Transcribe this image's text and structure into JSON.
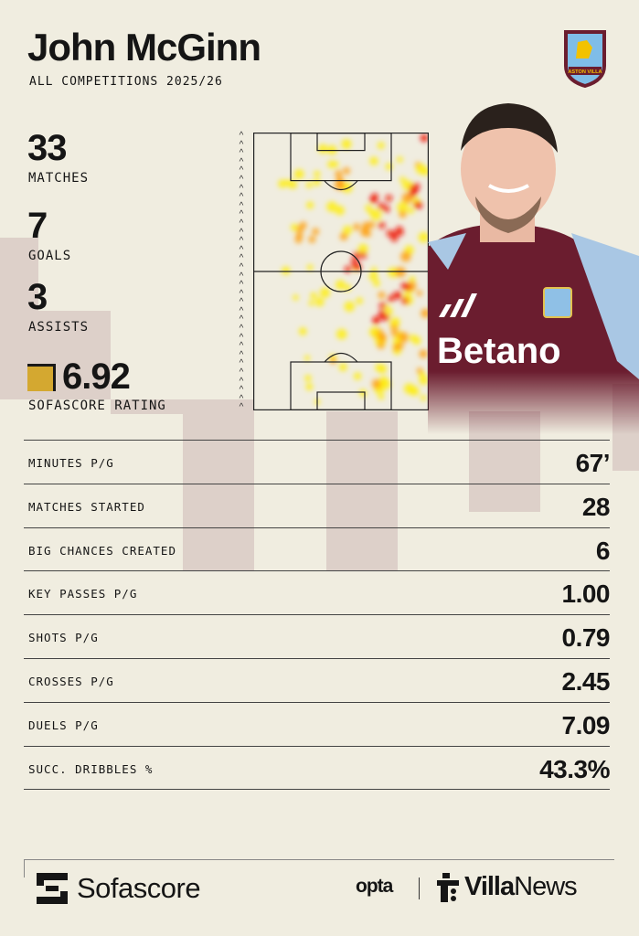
{
  "header": {
    "player_name": "John McGinn",
    "competition": "ALL COMPETITIONS 2025/26",
    "club_crest_text": "ASTON VILLA",
    "shirt_sponsor": "Betano"
  },
  "summary": [
    {
      "value": "33",
      "label": "MATCHES"
    },
    {
      "value": "7",
      "label": "GOALS"
    },
    {
      "value": "3",
      "label": "ASSISTS"
    },
    {
      "value": "6.92",
      "label": "SOFASCORE RATING"
    }
  ],
  "heatmap": {
    "type": "heatmap",
    "attack_direction": "up",
    "colors": [
      "#ffee00",
      "#ff9900",
      "#ee1100"
    ]
  },
  "stats": [
    {
      "label": "MINUTES P/G",
      "value": "67’"
    },
    {
      "label": "MATCHES STARTED",
      "value": "28"
    },
    {
      "label": "BIG CHANCES CREATED",
      "value": "6"
    },
    {
      "label": "KEY PASSES P/G",
      "value": "1.00"
    },
    {
      "label": "SHOTS P/G",
      "value": "0.79"
    },
    {
      "label": "CROSSES P/G",
      "value": "2.45"
    },
    {
      "label": "DUELS P/G",
      "value": "7.09"
    },
    {
      "label": "SUCC. DRIBBLES %",
      "value": "43.3%"
    }
  ],
  "footer": {
    "sofascore": "Sofascore",
    "opta": "opta",
    "villa_bold": "Villa",
    "villa_news": "News"
  },
  "colors": {
    "background": "#f0ede0",
    "accent_block": "#ddd0c9",
    "rating_badge": "#d4a830",
    "shirt": "#6b1d2f"
  }
}
